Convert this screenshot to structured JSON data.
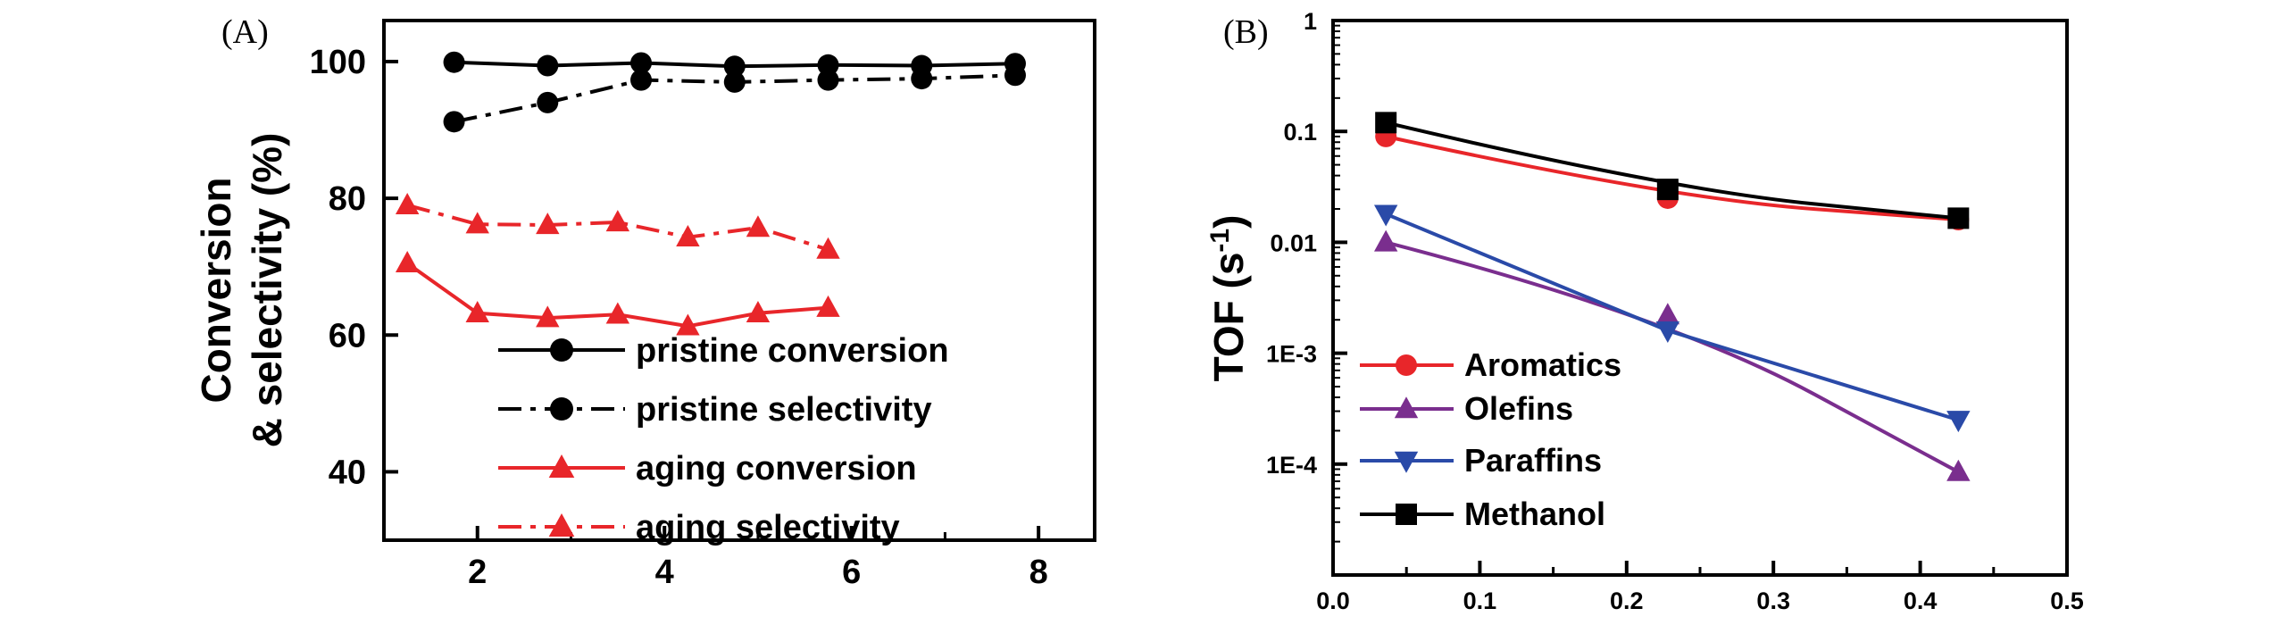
{
  "colors": {
    "black": "#000000",
    "red": "#e8262a",
    "purple": "#7a2e8e",
    "blue": "#2a4aa8",
    "axis": "#000000"
  },
  "chart_data": [
    {
      "panel": "(A)",
      "type": "line",
      "ylabel_line1": "Conversion",
      "ylabel_line2": "& selectivity (%)",
      "xlabel": "",
      "xlim": [
        1,
        8.6
      ],
      "ylim": [
        30,
        106
      ],
      "xticks": [
        "2",
        "4",
        "6",
        "8"
      ],
      "yticks": [
        "40",
        "60",
        "80",
        "100"
      ],
      "series": [
        {
          "name": "pristine conversion",
          "marker": "circle",
          "style": "solid",
          "color": "black",
          "x": [
            1.75,
            2.75,
            3.75,
            4.75,
            5.75,
            6.75,
            7.75
          ],
          "y": [
            99.9,
            99.4,
            99.8,
            99.3,
            99.5,
            99.4,
            99.7
          ]
        },
        {
          "name": "pristine selectivity",
          "marker": "circle",
          "style": "dashdot",
          "color": "black",
          "x": [
            1.75,
            2.75,
            3.75,
            4.75,
            5.75,
            6.75,
            7.75
          ],
          "y": [
            91.2,
            94.0,
            97.3,
            97.0,
            97.3,
            97.5,
            98.0
          ]
        },
        {
          "name": "aging conversion",
          "marker": "triangle-up",
          "style": "solid",
          "color": "red",
          "x": [
            1.25,
            2.0,
            2.75,
            3.5,
            4.25,
            5.0,
            5.75
          ],
          "y": [
            70.5,
            63.2,
            62.5,
            63.0,
            61.3,
            63.2,
            64.0
          ]
        },
        {
          "name": "aging selectivity",
          "marker": "triangle-up",
          "style": "dashdot",
          "color": "red",
          "x": [
            1.25,
            2.0,
            2.75,
            3.5,
            4.25,
            5.0,
            5.75
          ],
          "y": [
            79.0,
            76.2,
            76.1,
            76.5,
            74.3,
            75.7,
            72.5
          ]
        }
      ],
      "legend": [
        "pristine conversion",
        "pristine selectivity",
        "aging conversion",
        "aging selectivity"
      ]
    },
    {
      "panel": "(B)",
      "type": "line",
      "yscale": "log",
      "ylabel": "TOF (s",
      "ylabel_sup": "-1",
      "ylabel_end": ")",
      "xlabel": "",
      "xlim": [
        0.0,
        0.5
      ],
      "ylim_exp": [
        -5,
        0
      ],
      "xticks": [
        "0.0",
        "0.1",
        "0.2",
        "0.3",
        "0.4",
        "0.5"
      ],
      "yticks": [
        "1",
        "0.1",
        "0.01",
        "1E-3",
        "1E-4"
      ],
      "series": [
        {
          "name": "Aromatics",
          "marker": "circle",
          "color": "red",
          "x": [
            0.036,
            0.228,
            0.426
          ],
          "y": [
            0.09,
            0.025,
            0.016
          ]
        },
        {
          "name": "Olefins",
          "marker": "triangle-up",
          "color": "purple",
          "x": [
            0.036,
            0.228,
            0.426
          ],
          "y": [
            0.01,
            0.0022,
            8.5e-05
          ]
        },
        {
          "name": "Paraffins",
          "marker": "triangle-down",
          "color": "blue",
          "x": [
            0.036,
            0.228,
            0.426
          ],
          "y": [
            0.018,
            0.0016,
            0.00025
          ]
        },
        {
          "name": "Methanol",
          "marker": "square",
          "color": "black",
          "x": [
            0.036,
            0.228,
            0.426
          ],
          "y": [
            0.12,
            0.03,
            0.0165
          ]
        }
      ],
      "legend": [
        "Aromatics",
        "Olefins",
        "Paraffins",
        "Methanol"
      ]
    }
  ]
}
